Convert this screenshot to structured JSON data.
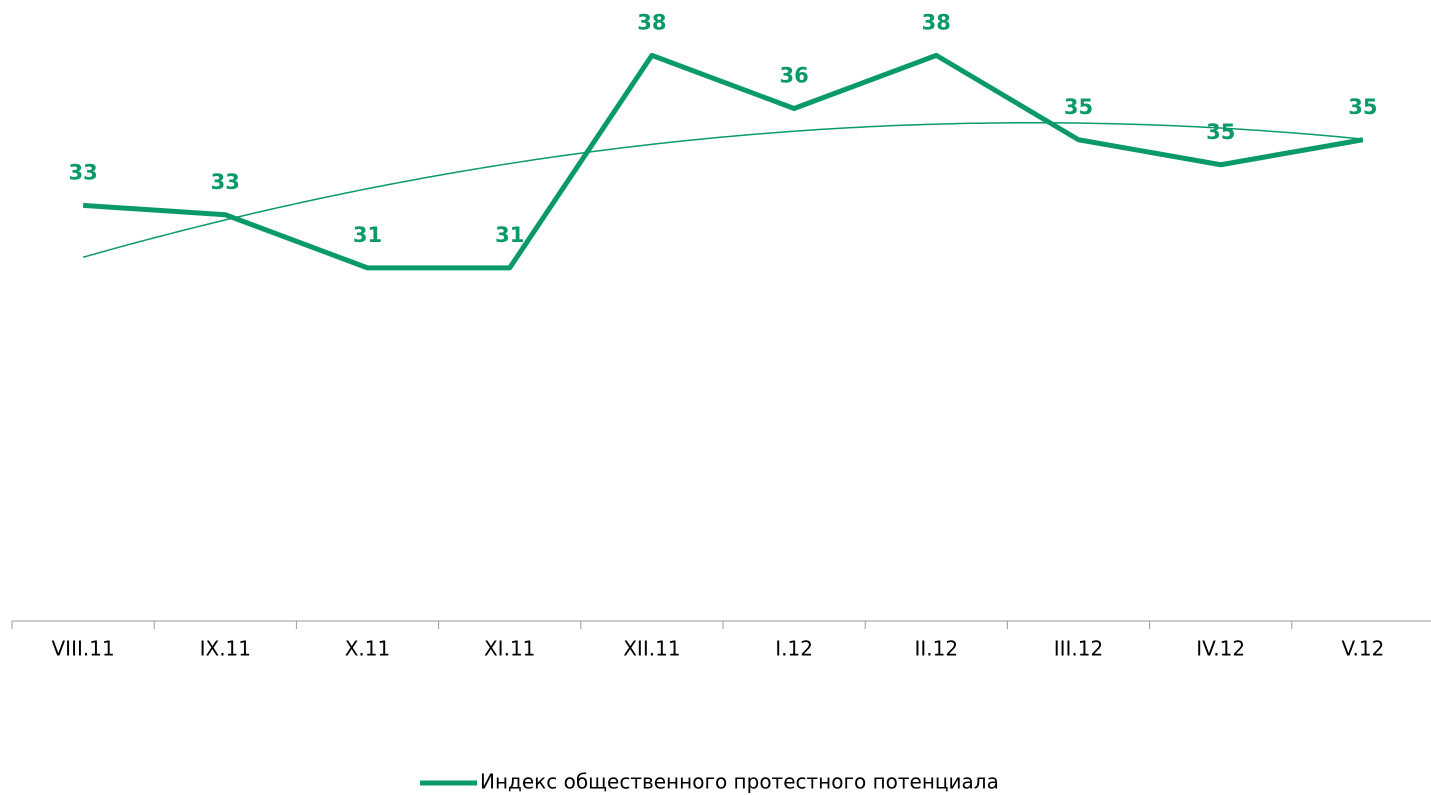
{
  "chart_data": {
    "type": "line",
    "categories": [
      "VIII.11",
      "IX.11",
      "X.11",
      "XI.11",
      "XII.11",
      "I.12",
      "II.12",
      "III.12",
      "IV.12",
      "V.12"
    ],
    "series": [
      {
        "name": "Индекс общественного протестного потенциала",
        "color": "#0a9a6a",
        "values": [
          33.3,
          33.0,
          31.3,
          31.3,
          38.1,
          36.4,
          38.1,
          35.4,
          34.6,
          35.4
        ],
        "value_labels": [
          "33",
          "33",
          "31",
          "31",
          "38",
          "36",
          "38",
          "35",
          "35",
          "35"
        ]
      }
    ],
    "ylim": [
      20,
      40
    ],
    "trendline": {
      "type": "polynomial",
      "order": 2
    },
    "legend": "bottom"
  }
}
